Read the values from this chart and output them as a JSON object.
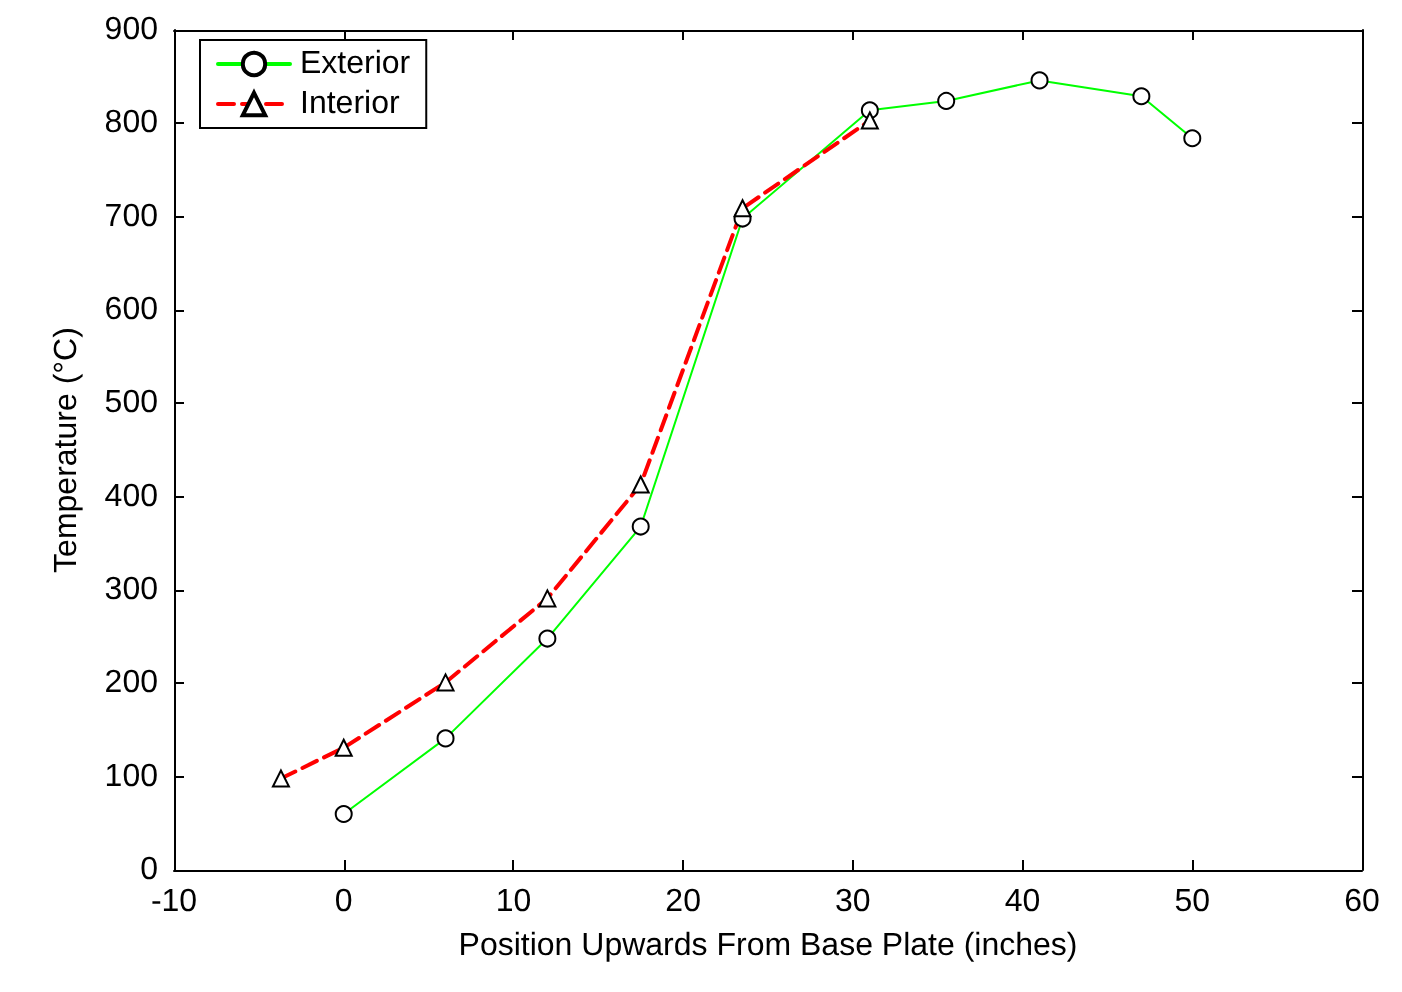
{
  "chart_data": {
    "type": "line",
    "xlabel": "Position Upwards From Base Plate (inches)",
    "ylabel": "Temperature (°C)",
    "xlim": [
      -10,
      60
    ],
    "xticks": [
      -10,
      0,
      10,
      20,
      30,
      40,
      50,
      60
    ],
    "ylim": [
      0,
      900
    ],
    "yticks": [
      0,
      100,
      200,
      300,
      400,
      500,
      600,
      700,
      800,
      900
    ],
    "grid": false,
    "legend": "top left",
    "series": [
      {
        "name": "Exterior",
        "color": "#00ff00",
        "marker": "circle",
        "line_style": "solid",
        "x": [
          0,
          6,
          12,
          17.5,
          23.5,
          31,
          35.5,
          41,
          47,
          50
        ],
        "values": [
          60,
          141,
          248,
          368,
          698,
          814,
          824,
          846,
          829,
          784
        ]
      },
      {
        "name": "Interior",
        "color": "#ff0000",
        "marker": "triangle",
        "line_style": "dashed",
        "x": [
          -3.7,
          0,
          6,
          12,
          17.5,
          23.5,
          31
        ],
        "values": [
          98,
          131,
          201,
          291,
          413,
          709,
          803
        ]
      }
    ]
  }
}
